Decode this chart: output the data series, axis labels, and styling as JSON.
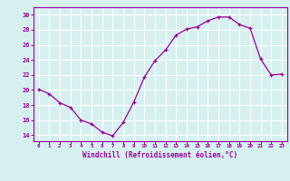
{
  "x": [
    0,
    1,
    2,
    3,
    4,
    5,
    6,
    7,
    8,
    9,
    10,
    11,
    12,
    13,
    14,
    15,
    16,
    17,
    18,
    19,
    20,
    21,
    22,
    23
  ],
  "y": [
    20.1,
    19.5,
    18.3,
    17.7,
    16.0,
    15.5,
    14.4,
    13.9,
    15.7,
    18.4,
    21.7,
    23.9,
    25.3,
    27.3,
    28.1,
    28.4,
    29.2,
    29.7,
    29.7,
    28.7,
    28.2,
    24.1,
    22.0,
    22.1
  ],
  "line_color": "#990099",
  "marker": "+",
  "bg_color": "#d6f0f0",
  "grid_color": "#ffffff",
  "xlabel": "Windchill (Refroidissement éolien,°C)",
  "xlabel_color": "#990099",
  "tick_color": "#990099",
  "ylabel_ticks": [
    14,
    16,
    18,
    20,
    22,
    24,
    26,
    28,
    30
  ],
  "xlim": [
    -0.5,
    23.5
  ],
  "ylim": [
    13.2,
    31.0
  ]
}
